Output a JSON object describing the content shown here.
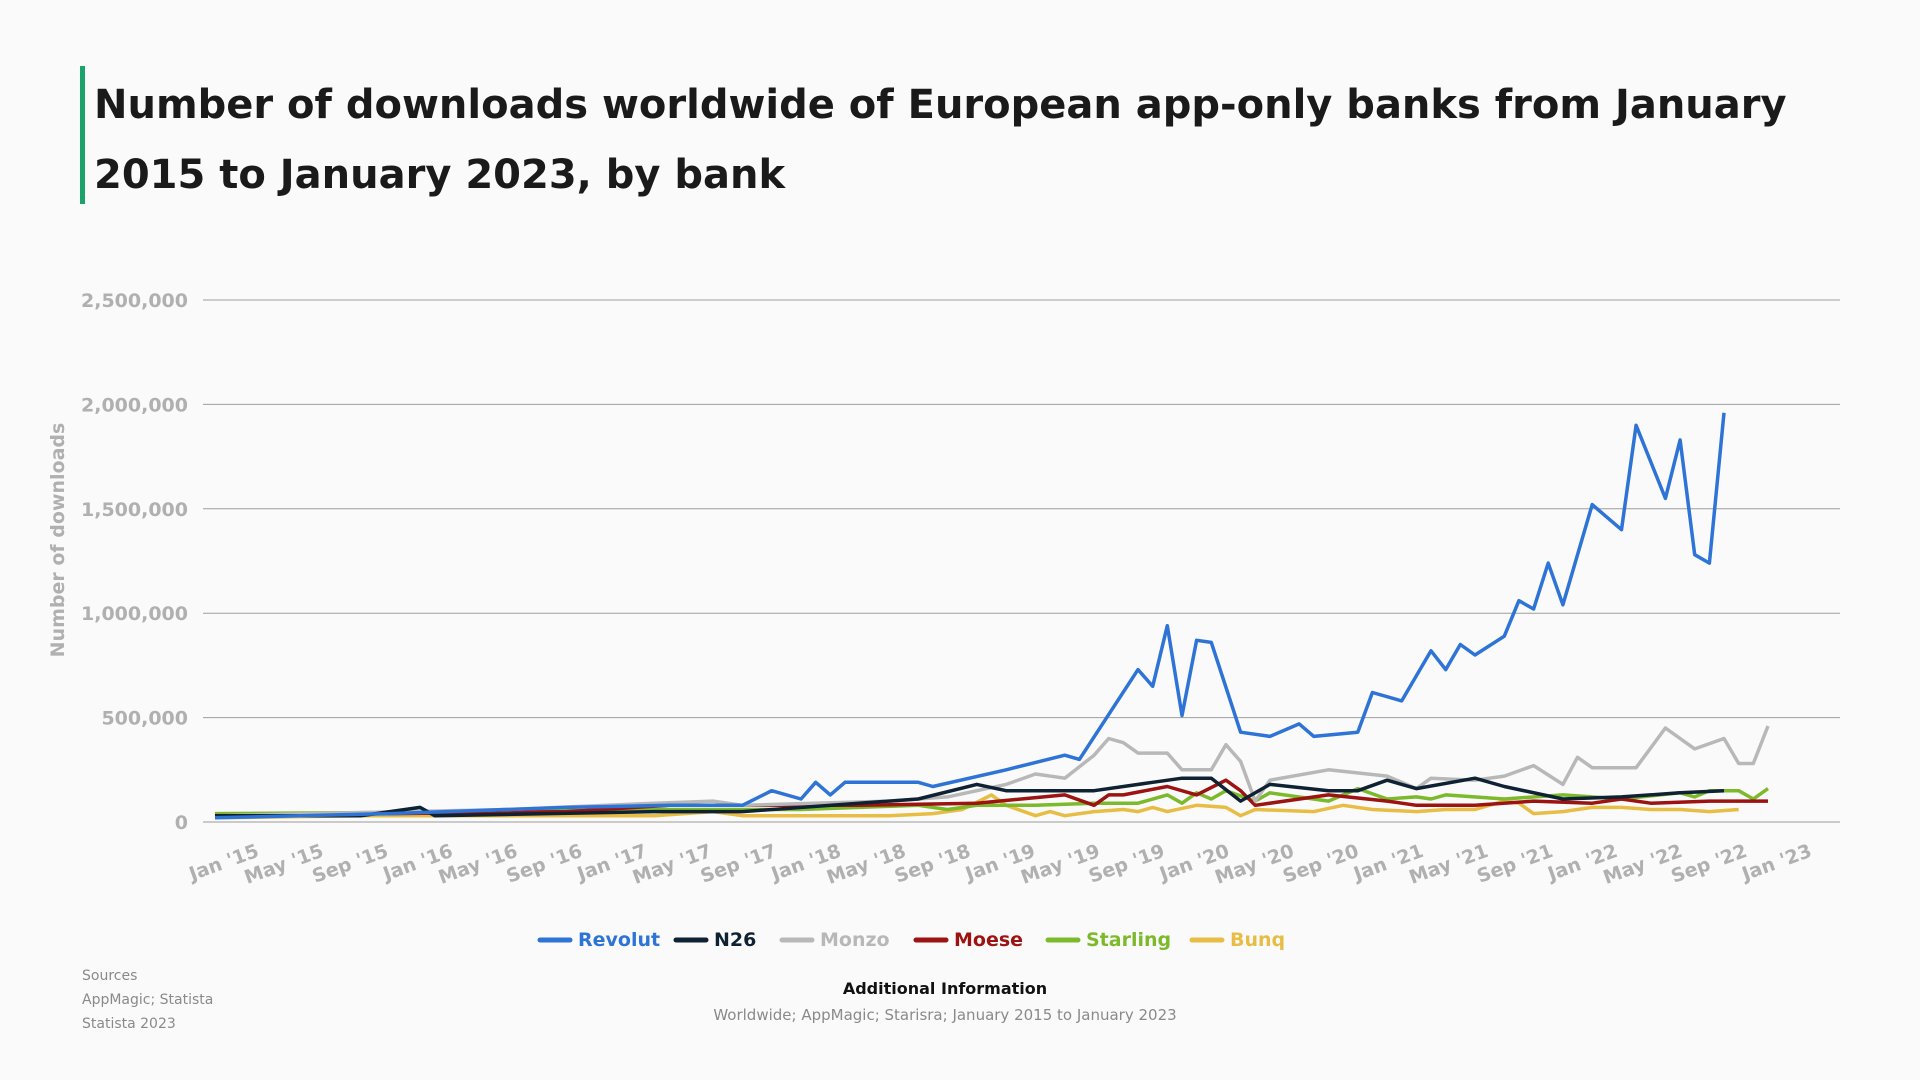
{
  "title": "Number of downloads worldwide of European app-only banks from January 2015 to January 2023, by bank",
  "sources": {
    "heading": "Sources",
    "line1": "AppMagic; Statista",
    "line2": "Statista 2023"
  },
  "additional_info": {
    "heading": "Additional Information",
    "text": "Worldwide; AppMagic; Starisra; January 2015 to January 2023"
  },
  "chart_data": {
    "type": "line",
    "title": "Number of downloads worldwide of European app-only banks from January 2015 to January 2023, by bank",
    "xlabel": "",
    "ylabel": "Number of downloads",
    "ylim": [
      0,
      2500000
    ],
    "yticks": [
      0,
      500000,
      1000000,
      1500000,
      2000000,
      2500000
    ],
    "ytick_labels": [
      "0",
      "500,000",
      "1,000,000",
      "1,500,000",
      "2,000,000",
      "2,500,000"
    ],
    "x_start": "Jan 2015",
    "x_count": 97,
    "xtick_labels": [
      "Jan '15",
      "May '15",
      "Sep '15",
      "Jan '16",
      "May '16",
      "Sep '16",
      "Jan '17",
      "May '17",
      "Sep '17",
      "Jan '18",
      "May '18",
      "Sep '18",
      "Jan '19",
      "May '19",
      "Sep '19",
      "Jan '20",
      "May '20",
      "Sep '20",
      "Jan '21",
      "May '21",
      "Sep '21",
      "Jan '22",
      "May '22",
      "Sep '22",
      "Jan '23"
    ],
    "grid": true,
    "legend_position": "bottom",
    "series": [
      {
        "name": "Revolut",
        "color": "#2e74d6",
        "points": [
          [
            0,
            20000
          ],
          [
            12,
            40000
          ],
          [
            24,
            70000
          ],
          [
            31,
            80000
          ],
          [
            36,
            80000
          ],
          [
            38,
            150000
          ],
          [
            40,
            110000
          ],
          [
            41,
            190000
          ],
          [
            42,
            130000
          ],
          [
            43,
            190000
          ],
          [
            48,
            190000
          ],
          [
            49,
            170000
          ],
          [
            54,
            250000
          ],
          [
            58,
            320000
          ],
          [
            59,
            300000
          ],
          [
            63,
            730000
          ],
          [
            64,
            650000
          ],
          [
            65,
            940000
          ],
          [
            66,
            510000
          ],
          [
            67,
            870000
          ],
          [
            68,
            860000
          ],
          [
            70,
            430000
          ],
          [
            72,
            410000
          ],
          [
            74,
            470000
          ],
          [
            75,
            410000
          ],
          [
            78,
            430000
          ],
          [
            79,
            620000
          ],
          [
            81,
            580000
          ],
          [
            83,
            820000
          ],
          [
            84,
            730000
          ],
          [
            85,
            850000
          ],
          [
            86,
            800000
          ],
          [
            88,
            890000
          ],
          [
            89,
            1060000
          ],
          [
            90,
            1020000
          ],
          [
            91,
            1240000
          ],
          [
            92,
            1040000
          ],
          [
            94,
            1520000
          ],
          [
            96,
            1400000
          ],
          [
            97,
            1900000
          ],
          [
            99,
            1550000
          ],
          [
            100,
            1830000
          ],
          [
            101,
            1280000
          ],
          [
            102,
            1240000
          ],
          [
            103,
            1960000
          ]
        ]
      },
      {
        "name": "N26",
        "color": "#0f2233",
        "points": [
          [
            0,
            30000
          ],
          [
            10,
            30000
          ],
          [
            14,
            70000
          ],
          [
            15,
            30000
          ],
          [
            30,
            50000
          ],
          [
            36,
            50000
          ],
          [
            48,
            110000
          ],
          [
            52,
            180000
          ],
          [
            54,
            150000
          ],
          [
            58,
            150000
          ],
          [
            60,
            150000
          ],
          [
            64,
            190000
          ],
          [
            66,
            210000
          ],
          [
            68,
            210000
          ],
          [
            70,
            100000
          ],
          [
            72,
            180000
          ],
          [
            76,
            150000
          ],
          [
            78,
            150000
          ],
          [
            80,
            200000
          ],
          [
            82,
            160000
          ],
          [
            86,
            210000
          ],
          [
            88,
            170000
          ],
          [
            92,
            110000
          ],
          [
            96,
            120000
          ],
          [
            100,
            140000
          ],
          [
            103,
            150000
          ]
        ]
      },
      {
        "name": "Monzo",
        "color": "#b8b8b8",
        "points": [
          [
            0,
            30000
          ],
          [
            20,
            60000
          ],
          [
            30,
            90000
          ],
          [
            34,
            100000
          ],
          [
            36,
            80000
          ],
          [
            46,
            100000
          ],
          [
            50,
            120000
          ],
          [
            54,
            180000
          ],
          [
            56,
            230000
          ],
          [
            58,
            210000
          ],
          [
            60,
            320000
          ],
          [
            61,
            400000
          ],
          [
            62,
            380000
          ],
          [
            63,
            330000
          ],
          [
            65,
            330000
          ],
          [
            66,
            250000
          ],
          [
            68,
            250000
          ],
          [
            69,
            370000
          ],
          [
            70,
            290000
          ],
          [
            71,
            100000
          ],
          [
            72,
            200000
          ],
          [
            76,
            250000
          ],
          [
            80,
            220000
          ],
          [
            82,
            160000
          ],
          [
            83,
            210000
          ],
          [
            86,
            200000
          ],
          [
            88,
            220000
          ],
          [
            90,
            270000
          ],
          [
            92,
            180000
          ],
          [
            93,
            310000
          ],
          [
            94,
            260000
          ],
          [
            97,
            260000
          ],
          [
            99,
            450000
          ],
          [
            101,
            350000
          ],
          [
            103,
            400000
          ],
          [
            104,
            280000
          ],
          [
            105,
            280000
          ],
          [
            106,
            460000
          ]
        ]
      },
      {
        "name": "Moese",
        "color": "#9b1412",
        "points": [
          [
            0,
            30000
          ],
          [
            24,
            50000
          ],
          [
            31,
            80000
          ],
          [
            36,
            80000
          ],
          [
            44,
            80000
          ],
          [
            52,
            90000
          ],
          [
            58,
            130000
          ],
          [
            60,
            80000
          ],
          [
            61,
            130000
          ],
          [
            62,
            130000
          ],
          [
            65,
            170000
          ],
          [
            67,
            130000
          ],
          [
            69,
            200000
          ],
          [
            70,
            150000
          ],
          [
            71,
            80000
          ],
          [
            76,
            130000
          ],
          [
            80,
            100000
          ],
          [
            82,
            80000
          ],
          [
            86,
            80000
          ],
          [
            90,
            100000
          ],
          [
            94,
            90000
          ],
          [
            96,
            110000
          ],
          [
            98,
            90000
          ],
          [
            102,
            100000
          ],
          [
            106,
            100000
          ]
        ]
      },
      {
        "name": "Starling",
        "color": "#7cba2c",
        "points": [
          [
            0,
            40000
          ],
          [
            20,
            50000
          ],
          [
            30,
            60000
          ],
          [
            40,
            60000
          ],
          [
            44,
            70000
          ],
          [
            48,
            80000
          ],
          [
            50,
            60000
          ],
          [
            52,
            80000
          ],
          [
            56,
            80000
          ],
          [
            60,
            90000
          ],
          [
            63,
            90000
          ],
          [
            65,
            130000
          ],
          [
            66,
            90000
          ],
          [
            67,
            140000
          ],
          [
            68,
            110000
          ],
          [
            69,
            150000
          ],
          [
            71,
            100000
          ],
          [
            72,
            140000
          ],
          [
            76,
            100000
          ],
          [
            78,
            160000
          ],
          [
            80,
            110000
          ],
          [
            82,
            120000
          ],
          [
            83,
            110000
          ],
          [
            84,
            130000
          ],
          [
            88,
            110000
          ],
          [
            92,
            130000
          ],
          [
            96,
            110000
          ],
          [
            100,
            140000
          ],
          [
            101,
            120000
          ],
          [
            102,
            150000
          ],
          [
            104,
            150000
          ],
          [
            105,
            110000
          ],
          [
            106,
            160000
          ]
        ]
      },
      {
        "name": "Bunq",
        "color": "#e8bd45",
        "points": [
          [
            0,
            20000
          ],
          [
            10,
            30000
          ],
          [
            30,
            30000
          ],
          [
            34,
            50000
          ],
          [
            36,
            30000
          ],
          [
            42,
            30000
          ],
          [
            46,
            30000
          ],
          [
            49,
            40000
          ],
          [
            51,
            60000
          ],
          [
            53,
            130000
          ],
          [
            54,
            80000
          ],
          [
            56,
            30000
          ],
          [
            57,
            50000
          ],
          [
            58,
            30000
          ],
          [
            60,
            50000
          ],
          [
            62,
            60000
          ],
          [
            63,
            50000
          ],
          [
            64,
            70000
          ],
          [
            65,
            50000
          ],
          [
            67,
            80000
          ],
          [
            69,
            70000
          ],
          [
            70,
            30000
          ],
          [
            71,
            60000
          ],
          [
            75,
            50000
          ],
          [
            77,
            80000
          ],
          [
            79,
            60000
          ],
          [
            82,
            50000
          ],
          [
            84,
            60000
          ],
          [
            86,
            60000
          ],
          [
            88,
            100000
          ],
          [
            89,
            90000
          ],
          [
            90,
            40000
          ],
          [
            92,
            50000
          ],
          [
            94,
            70000
          ],
          [
            96,
            70000
          ],
          [
            98,
            60000
          ],
          [
            100,
            60000
          ],
          [
            102,
            50000
          ],
          [
            104,
            60000
          ]
        ]
      }
    ]
  }
}
